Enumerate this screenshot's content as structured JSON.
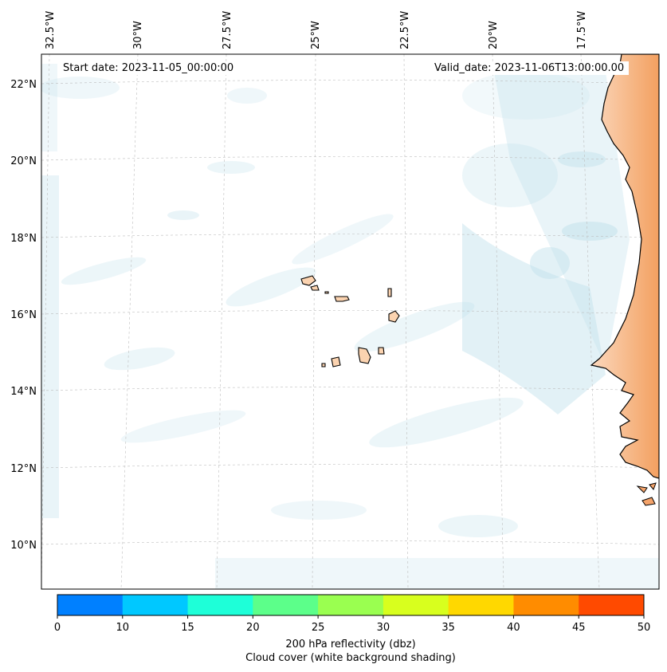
{
  "header": {
    "start_date": "Start date: 2023-11-05_00:00:00",
    "valid_date": "Valid_date: 2023-11-06T13:00:00.00"
  },
  "axes": {
    "lon_labels": [
      "32.5°W",
      "30°W",
      "27.5°W",
      "25°W",
      "22.5°W",
      "20°W",
      "17.5°W"
    ],
    "lat_labels": [
      "22°N",
      "20°N",
      "18°N",
      "16°N",
      "14°N",
      "12°N",
      "10°N"
    ]
  },
  "colorbar": {
    "ticks": [
      "0",
      "10",
      "15",
      "20",
      "25",
      "30",
      "35",
      "40",
      "45",
      "50"
    ],
    "colors": [
      "#0080ff",
      "#00c8ff",
      "#1effd8",
      "#5cff8a",
      "#9aff50",
      "#d8ff1e",
      "#ffd800",
      "#ff8c00",
      "#ff4a00"
    ],
    "label": "200 hPa reflectivity (dbz)",
    "sublabel": "Cloud cover (white background shading)"
  },
  "chart_data": {
    "type": "heatmap",
    "title": "200 hPa reflectivity (dbz) with cloud cover",
    "start_date": "2023-11-05_00:00:00",
    "valid_date": "2023-11-06T13:00:00.00",
    "lon_range": [
      -33,
      -15.5
    ],
    "lat_range": [
      9,
      22.8
    ],
    "colorbar_levels": [
      0,
      10,
      15,
      20,
      25,
      30,
      35,
      40,
      45,
      50
    ],
    "colors": {
      "land": "#f4a36a",
      "cloud": "#cfe6ee",
      "coast": "#000000"
    }
  }
}
